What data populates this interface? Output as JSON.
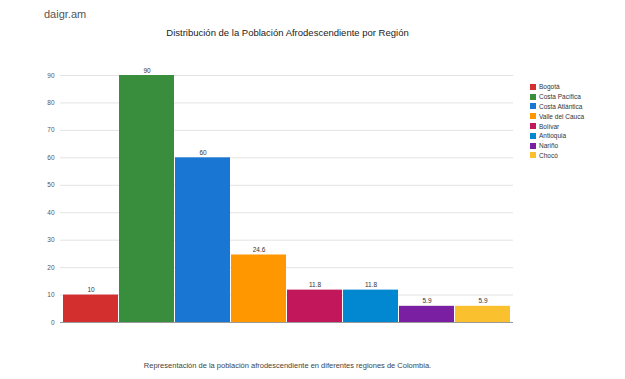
{
  "chart_data": {
    "type": "bar",
    "title": "Distribución de la Población Afrodescendiente por Región",
    "subtitle": "Representación de la población afrodescendiente en diferentes regiones de Colombia.",
    "watermark": "daigr.am",
    "categories": [
      "Bogotá",
      "Costa Pacífica",
      "Costa Atlántica",
      "Valle del Cauca",
      "Bolívar",
      "Antioquia",
      "Nariño",
      "Chocó"
    ],
    "values": [
      10,
      90,
      60,
      24.6,
      11.8,
      11.8,
      5.9,
      5.9
    ],
    "colors": [
      "#d32f2f",
      "#388e3c",
      "#1976d2",
      "#ff9800",
      "#c2185b",
      "#0288d1",
      "#7b1fa2",
      "#fbc02d"
    ],
    "ylim": [
      0,
      90
    ],
    "yticks": [
      0,
      10,
      20,
      30,
      40,
      50,
      60,
      70,
      80,
      90
    ],
    "grid": true,
    "data_labels": true,
    "tick_labels": "y",
    "legend": "right"
  }
}
